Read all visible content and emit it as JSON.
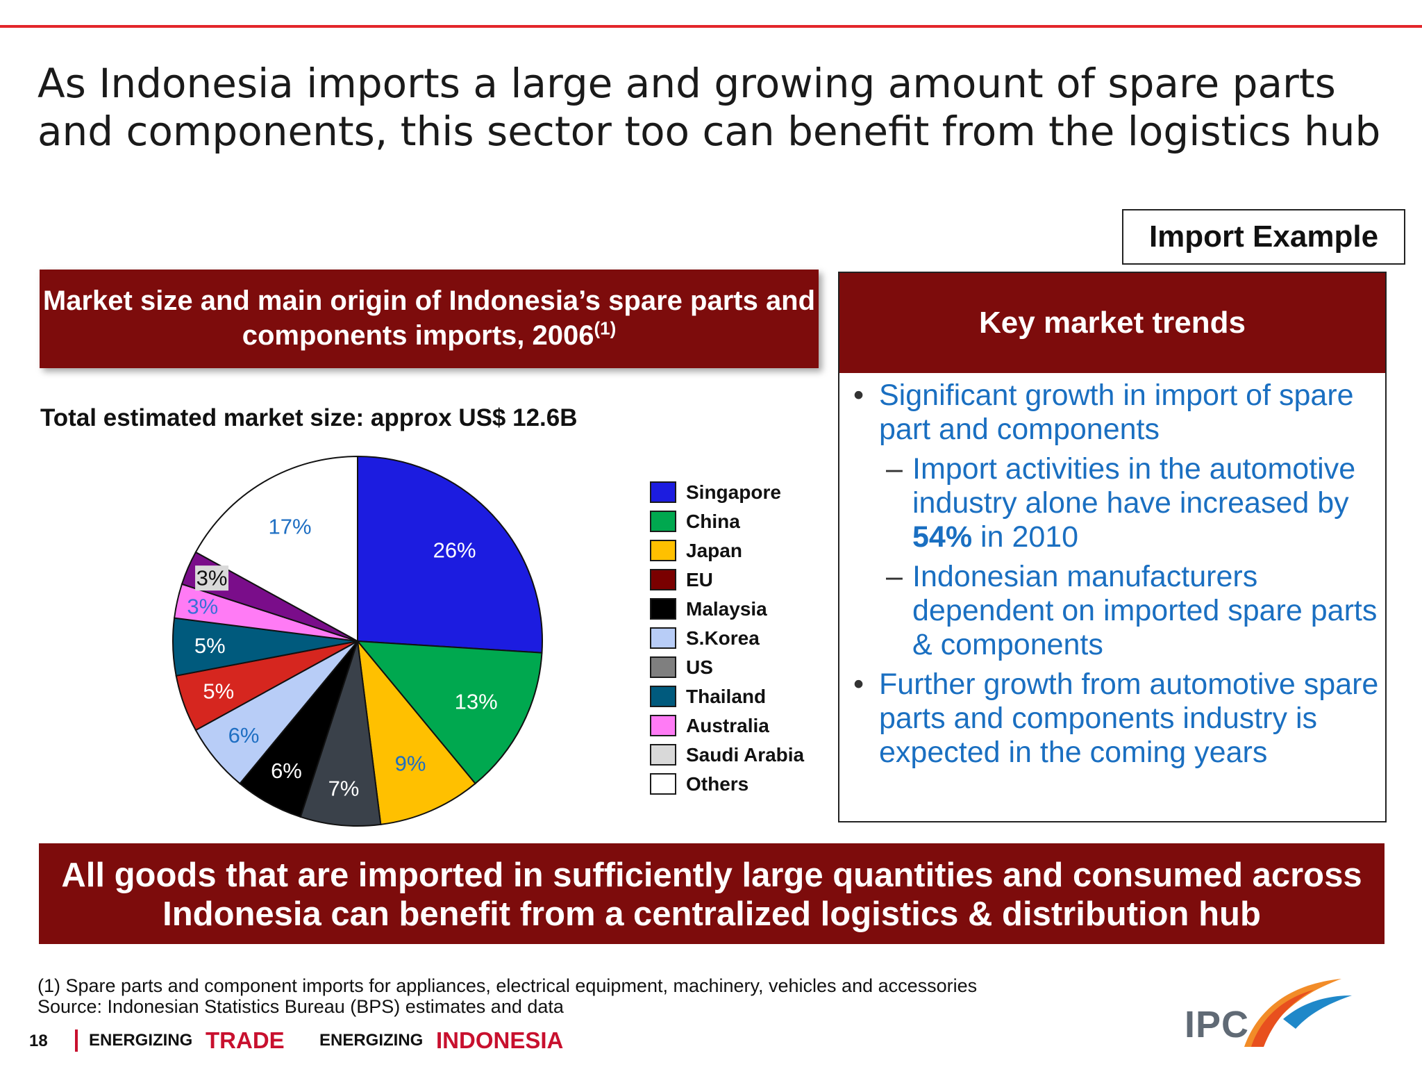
{
  "slide": {
    "title": "As Indonesia imports a large and growing amount of spare parts and components, this sector too can benefit from the logistics hub",
    "example_tag": "Import Example",
    "chart_header": "Market size and main origin of Indonesia’s spare parts and components imports, 2006",
    "chart_header_note": "(1)",
    "market_size_text": "Total estimated market size: approx US$ 12.6B",
    "trends": {
      "header": "Key market trends",
      "bullets": [
        {
          "text": "Significant growth in import of spare part and components"
        },
        {
          "text_before": "Import activities in the automotive industry alone have increased by ",
          "highlight": "54%",
          "text_after": " in 2010"
        },
        {
          "text": "Indonesian manufacturers dependent on imported spare parts & components"
        },
        {
          "text": "Further growth from automotive spare parts and components industry is expected in the coming years"
        }
      ]
    },
    "bottom_banner": "All goods that are imported in sufficiently large quantities and consumed across Indonesia can benefit from a centralized logistics & distribution hub",
    "footnotes": [
      "(1) Spare parts and component imports for appliances, electrical equipment, machinery, vehicles and accessories",
      "Source: Indonesian Statistics Bureau (BPS) estimates and data"
    ],
    "footer": {
      "page_number": "18",
      "tagline": [
        "ENERGIZING",
        "TRADE",
        "ENERGIZING",
        "INDONESIA"
      ],
      "logo_text": "IPC"
    }
  },
  "chart_data": {
    "type": "pie",
    "title": "",
    "unit": "%",
    "slices": [
      {
        "label": "Singapore",
        "value": 26,
        "color": "#1c1ce0",
        "label_color": "#ffffff"
      },
      {
        "label": "China",
        "value": 13,
        "color": "#00a84f",
        "label_color": "#ffffff"
      },
      {
        "label": "Japan",
        "value": 9,
        "color": "#ffc000",
        "label_color": "#1f6fc3"
      },
      {
        "label": "US",
        "value": 7,
        "color": "#3a414a",
        "label_color": "#ffffff"
      },
      {
        "label": "Malaysia",
        "value": 6,
        "color": "#000000",
        "label_color": "#ffffff"
      },
      {
        "label": "S.Korea",
        "value": 6,
        "color": "#b8cdf7",
        "label_color": "#1f6fc3"
      },
      {
        "label": "EU",
        "value": 5,
        "color": "#d6261f",
        "label_color": "#ffffff"
      },
      {
        "label": "Thailand",
        "value": 5,
        "color": "#005a7d",
        "label_color": "#ffffff"
      },
      {
        "label": "Australia",
        "value": 3,
        "color": "#ff7bf5",
        "label_color": "#3a6fd8"
      },
      {
        "label": "Saudi Arabia",
        "value": 3,
        "color": "#7a0d8a",
        "label_color": "#111111",
        "label_bg": "#d9d9d9"
      },
      {
        "label": "Others",
        "value": 17,
        "color": "#ffffff",
        "label_color": "#1f6fc3"
      }
    ],
    "legend": [
      {
        "label": "Singapore",
        "color": "#1c1ce0"
      },
      {
        "label": "China",
        "color": "#00a84f"
      },
      {
        "label": "Japan",
        "color": "#ffc000"
      },
      {
        "label": "EU",
        "color": "#7a0000"
      },
      {
        "label": "Malaysia",
        "color": "#000000"
      },
      {
        "label": "S.Korea",
        "color": "#b8cdf7"
      },
      {
        "label": "US",
        "color": "#7f7f7f"
      },
      {
        "label": "Thailand",
        "color": "#005a7d"
      },
      {
        "label": "Australia",
        "color": "#ff7bf5"
      },
      {
        "label": "Saudi Arabia",
        "color": "#d9d9d9"
      },
      {
        "label": "Others",
        "color": "#ffffff"
      }
    ],
    "legend_position": "right"
  }
}
